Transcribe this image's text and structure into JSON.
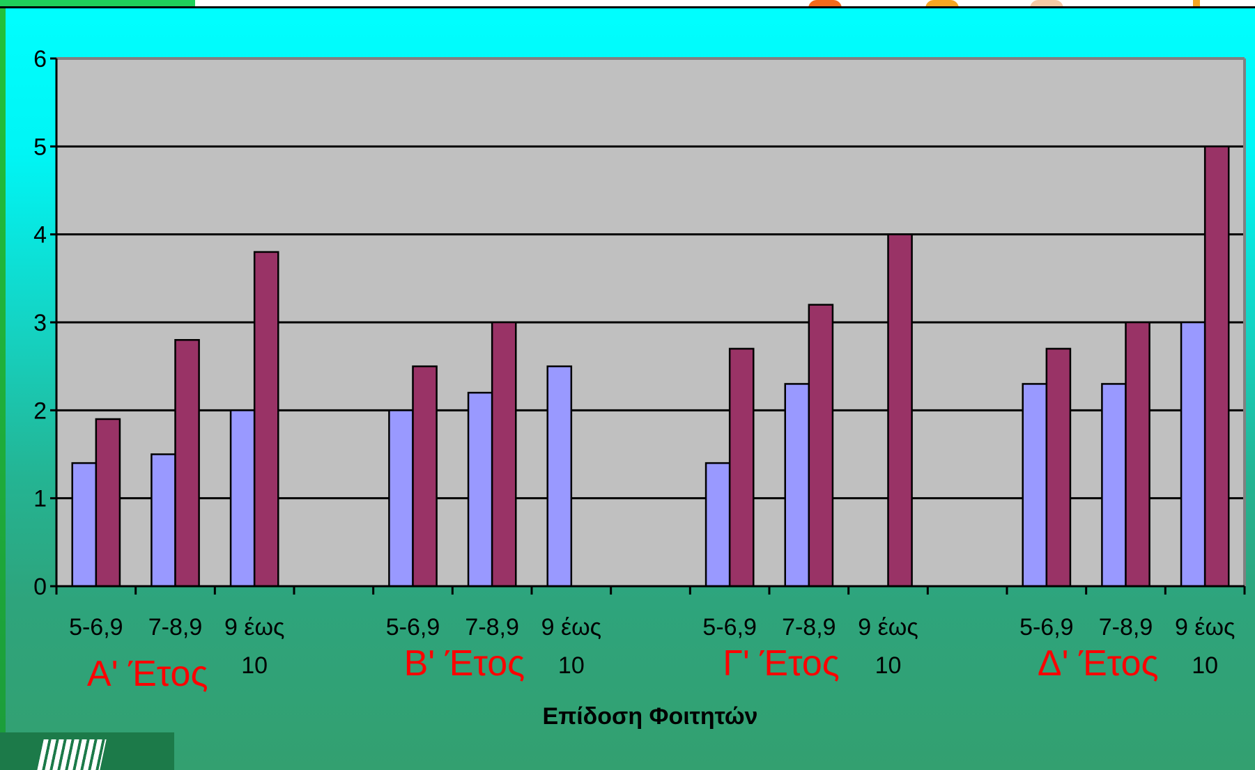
{
  "chart_data": {
    "type": "bar",
    "title": "",
    "xlabel": "Επίδοση Φοιτητών",
    "ylabel": "",
    "ylim": [
      0,
      6
    ],
    "yticks": [
      "0",
      "1",
      "2",
      "3",
      "4",
      "5",
      "6"
    ],
    "grid": true,
    "legend": "none",
    "groups": [
      {
        "label": "Α' Έτος",
        "categories": [
          {
            "label_lines": [
              "5-6,9"
            ],
            "values": [
              1.4,
              1.9
            ]
          },
          {
            "label_lines": [
              "7-8,9"
            ],
            "values": [
              1.5,
              2.8
            ]
          },
          {
            "label_lines": [
              "9 έως",
              "10"
            ],
            "values": [
              2.0,
              3.8
            ]
          }
        ]
      },
      {
        "label": "Β' Έτος",
        "categories": [
          {
            "label_lines": [
              "5-6,9"
            ],
            "values": [
              2.0,
              2.5
            ]
          },
          {
            "label_lines": [
              "7-8,9"
            ],
            "values": [
              2.2,
              3.0
            ]
          },
          {
            "label_lines": [
              "9 έως",
              "10"
            ],
            "values": [
              2.5,
              0
            ]
          }
        ]
      },
      {
        "label": "Γ' Έτος",
        "categories": [
          {
            "label_lines": [
              "5-6,9"
            ],
            "values": [
              1.4,
              2.7
            ]
          },
          {
            "label_lines": [
              "7-8,9"
            ],
            "values": [
              2.3,
              3.2
            ]
          },
          {
            "label_lines": [
              "9 έως",
              "10"
            ],
            "values": [
              0,
              4.0
            ]
          }
        ]
      },
      {
        "label": "Δ' Έτος",
        "categories": [
          {
            "label_lines": [
              "5-6,9"
            ],
            "values": [
              2.3,
              2.7
            ]
          },
          {
            "label_lines": [
              "7-8,9"
            ],
            "values": [
              2.3,
              3.0
            ]
          },
          {
            "label_lines": [
              "9 έως",
              "10"
            ],
            "values": [
              3.0,
              5.0
            ]
          }
        ]
      }
    ],
    "series_colors": [
      "#9999ff",
      "#993366"
    ],
    "plot_background": "#c0c0c0",
    "group_label_color": "#ff0000"
  }
}
